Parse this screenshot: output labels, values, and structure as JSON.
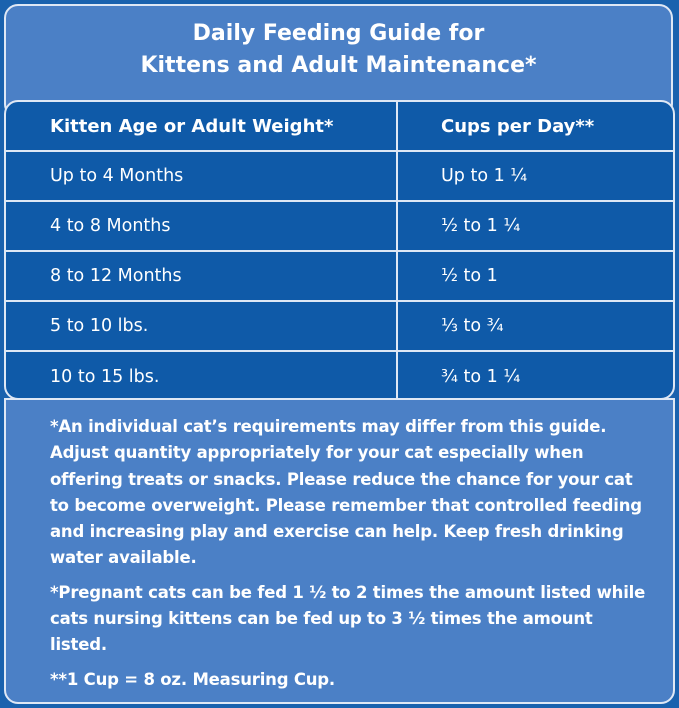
{
  "title": {
    "line1": "Daily Feeding Guide for",
    "line2": "Kittens and Adult Maintenance*"
  },
  "table": {
    "headers": [
      "Kitten Age or Adult Weight*",
      "Cups per Day**"
    ],
    "rows": [
      [
        "Up to 4 Months",
        "Up to 1 ¼"
      ],
      [
        "4 to 8 Months",
        "½ to 1 ¼"
      ],
      [
        "8 to 12 Months",
        "½ to 1"
      ],
      [
        "5 to 10 lbs.",
        "⅓ to ¾"
      ],
      [
        "10 to 15 lbs.",
        "¾ to 1 ¼"
      ]
    ]
  },
  "notes": [
    "*An individual cat’s requirements may differ from this guide. Adjust quantity appropriately for your cat especially when offering treats or snacks. Please reduce the chance for your cat to become overweight. Please remember that controlled feeding and increasing play and exercise can help. Keep fresh drinking water available.",
    "*Pregnant cats can be fed 1 ½ to 2 times the amount listed while cats nursing kittens can be fed up to 3 ½ times the amount listed.",
    "**1 Cup = 8 oz. Measuring Cup."
  ],
  "colors": {
    "background": "#1a62ae",
    "title_box": "#4b80c6",
    "table": "#0f5aa8",
    "border": "#dfe8f5"
  }
}
